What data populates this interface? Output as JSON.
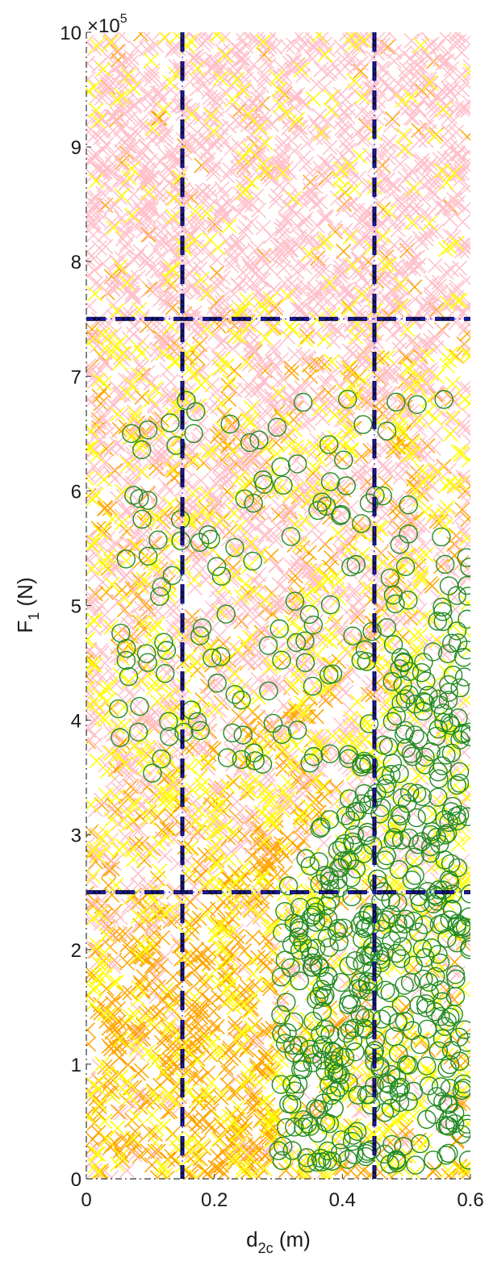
{
  "chart_data": {
    "type": "scatter",
    "xlabel": {
      "main": "d",
      "sub": "2c",
      "unit": " (m)"
    },
    "ylabel": {
      "main": "F",
      "sub": "1",
      "unit": " (N)"
    },
    "exponent": {
      "prefix": "×10",
      "power": "5"
    },
    "xlim": [
      0,
      0.6
    ],
    "ylim": [
      0,
      10
    ],
    "x_ticks": [
      0,
      0.2,
      0.4,
      0.6
    ],
    "x_tick_labels": [
      "0",
      "0.2",
      "0.4",
      "0.6"
    ],
    "y_ticks": [
      0,
      1,
      2,
      3,
      4,
      5,
      6,
      7,
      8,
      9,
      10
    ],
    "y_tick_labels": [
      "0",
      "1",
      "2",
      "3",
      "4",
      "5",
      "6",
      "7",
      "8",
      "9",
      "10"
    ],
    "grid": false,
    "reference_lines": {
      "vertical_x": [
        0.15,
        0.45
      ],
      "horizontal_y": [
        2.5,
        7.5
      ]
    },
    "series": [
      {
        "marker": "x",
        "color": "#FFA500"
      },
      {
        "marker": "x",
        "color": "#FFC0CB"
      },
      {
        "marker": "x",
        "color": "#FFFF00"
      },
      {
        "marker": "o",
        "color": "#228B22"
      }
    ],
    "legend": "none"
  }
}
